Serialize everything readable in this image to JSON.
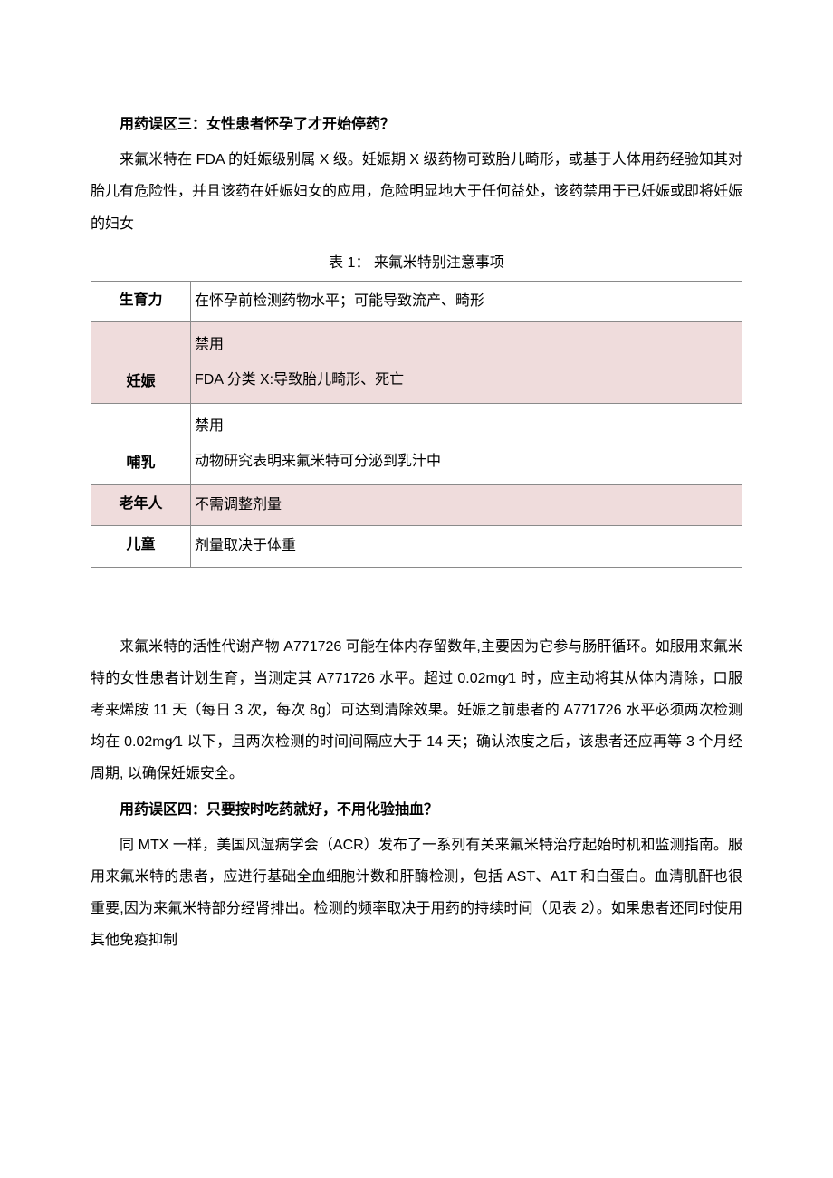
{
  "section1": {
    "heading": "用药误区三：女性患者怀孕了才开始停药？",
    "paragraph": "来氟米特在 FDA 的妊娠级别属 X 级。妊娠期 X 级药物可致胎儿畸形，或基于人体用药经验知其对胎儿有危险性，并且该药在妊娠妇女的应用，危险明显地大于任何益处，该药禁用于已妊娠或即将妊娠的妇女"
  },
  "table1": {
    "caption": "表 1： 来氟米特别注意事项",
    "rows": [
      {
        "label": "生育力",
        "content": "在怀孕前检测药物水平；可能导致流产、畸形",
        "shaded": false
      },
      {
        "label": "妊娠",
        "content": "禁用\nFDA 分类 X:导致胎儿畸形、死亡",
        "shaded": true
      },
      {
        "label": "哺乳",
        "content": "禁用\n动物研究表明来氟米特可分泌到乳汁中",
        "shaded": false
      },
      {
        "label": "老年人",
        "content": "不需调整剂量",
        "shaded": true
      },
      {
        "label": "儿童",
        "content": "剂量取决于体重",
        "shaded": false
      }
    ]
  },
  "section2": {
    "paragraph": "来氟米特的活性代谢产物 A771726 可能在体内存留数年,主要因为它参与肠肝循环。如服用来氟米特的女性患者计划生育，当测定其 A771726 水平。超过 0.02mg⁄1 时，应主动将其从体内清除，口服考来烯胺 11 天（每日 3 次，每次 8g）可达到清除效果。妊娠之前患者的 A771726 水平必须两次检测均在 0.02mg⁄1 以下，且两次检测的时间间隔应大于 14 天；确认浓度之后，该患者还应再等 3 个月经周期, 以确保妊娠安全。"
  },
  "section3": {
    "heading": "用药误区四：只要按时吃药就好，不用化验抽血？",
    "paragraph": "同 MTX 一样，美国风湿病学会（ACR）发布了一系列有关来氟米特治疗起始时机和监测指南。服用来氟米特的患者，应进行基础全血细胞计数和肝酶检测，包括 AST、A1T 和白蛋白。血清肌酐也很重要,因为来氟米特部分经肾排出。检测的频率取决于用药的持续时间（见表 2）。如果患者还同时使用其他免疫抑制"
  },
  "colors": {
    "background": "#ffffff",
    "text": "#000000",
    "border": "#8a8a8a",
    "shaded_row": "#efdcdc"
  }
}
